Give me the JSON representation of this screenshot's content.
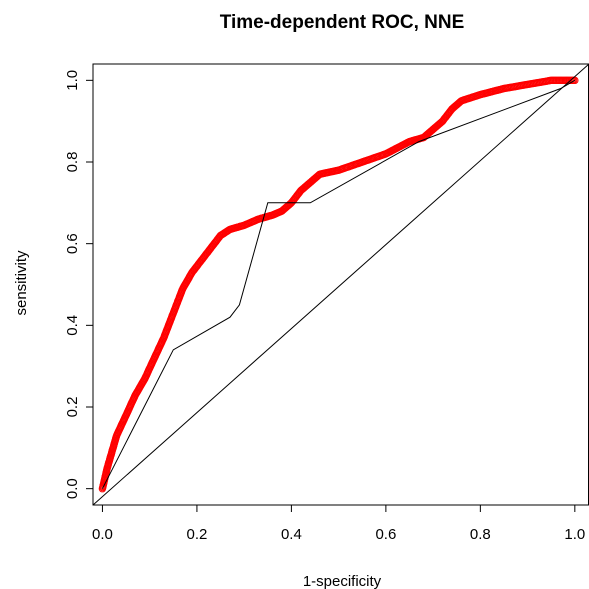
{
  "chart_data": {
    "type": "line",
    "title": "Time-dependent ROC, NNE",
    "xlabel": "1-specificity",
    "ylabel": "sensitivity",
    "xlim": [
      -0.02,
      1.03
    ],
    "ylim": [
      -0.04,
      1.04
    ],
    "x_ticks": [
      0.0,
      0.2,
      0.4,
      0.6,
      0.8,
      1.0
    ],
    "x_tick_labels": [
      "0.0",
      "0.2",
      "0.4",
      "0.6",
      "0.8",
      "1.0"
    ],
    "y_ticks": [
      0.0,
      0.2,
      0.4,
      0.6,
      0.8,
      1.0
    ],
    "y_tick_labels": [
      "0.0",
      "0.2",
      "0.4",
      "0.6",
      "0.8",
      "1.0"
    ],
    "grid": false,
    "legend": "none",
    "series": [
      {
        "style": "points",
        "color": "#ff0000",
        "x": [
          0.0,
          0.01,
          0.02,
          0.03,
          0.05,
          0.07,
          0.09,
          0.11,
          0.13,
          0.15,
          0.17,
          0.19,
          0.21,
          0.23,
          0.25,
          0.27,
          0.3,
          0.33,
          0.36,
          0.38,
          0.4,
          0.42,
          0.44,
          0.46,
          0.5,
          0.55,
          0.6,
          0.65,
          0.68,
          0.7,
          0.72,
          0.74,
          0.76,
          0.8,
          0.85,
          0.9,
          0.95,
          0.97,
          1.0
        ],
        "y": [
          0.0,
          0.05,
          0.09,
          0.13,
          0.18,
          0.23,
          0.27,
          0.32,
          0.37,
          0.43,
          0.49,
          0.53,
          0.56,
          0.59,
          0.62,
          0.635,
          0.645,
          0.66,
          0.67,
          0.68,
          0.7,
          0.73,
          0.75,
          0.77,
          0.78,
          0.8,
          0.82,
          0.85,
          0.86,
          0.88,
          0.9,
          0.93,
          0.95,
          0.965,
          0.98,
          0.99,
          1.0,
          1.0,
          1.0
        ]
      },
      {
        "style": "line",
        "color": "#000000",
        "x": [
          0.0,
          0.15,
          0.27,
          0.29,
          0.35,
          0.44,
          0.67,
          0.97,
          1.0
        ],
        "y": [
          0.0,
          0.34,
          0.42,
          0.45,
          0.7,
          0.7,
          0.85,
          0.98,
          1.0
        ]
      },
      {
        "style": "line",
        "color": "#000000",
        "x": [
          -0.02,
          1.03
        ],
        "y": [
          -0.04,
          1.04
        ]
      }
    ]
  }
}
